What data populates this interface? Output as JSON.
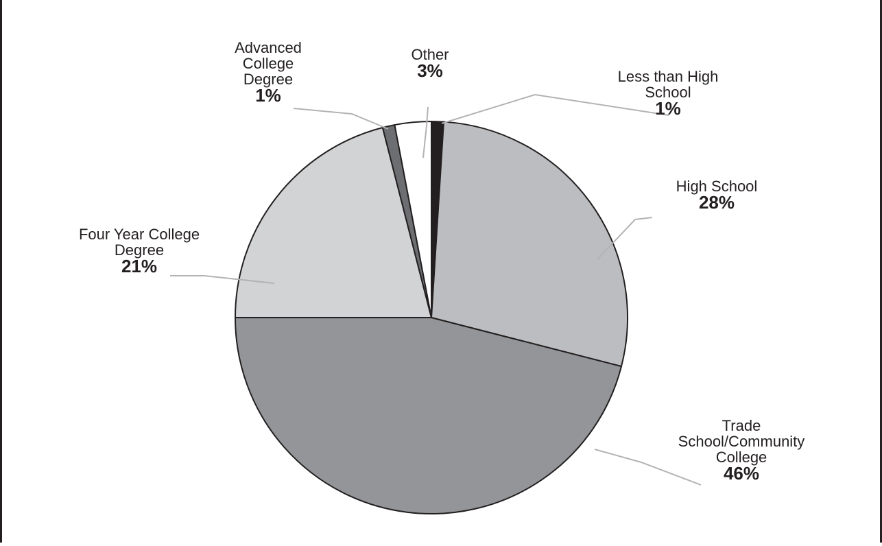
{
  "chart_data": {
    "type": "pie",
    "title": "",
    "start_angle_deg": 0,
    "direction": "clockwise",
    "slices": [
      {
        "name": "Less than High School",
        "label_lines": [
          "Less than High",
          "School"
        ],
        "value": 1,
        "value_label": "1%",
        "color": "#231f20"
      },
      {
        "name": "High School",
        "label_lines": [
          "High School"
        ],
        "value": 28,
        "value_label": "28%",
        "color": "#bcbdc0"
      },
      {
        "name": "Trade School/Community College",
        "label_lines": [
          "Trade",
          "School/Community",
          "College"
        ],
        "value": 46,
        "value_label": "46%",
        "color": "#939598"
      },
      {
        "name": "Four Year College Degree",
        "label_lines": [
          "Four Year College",
          "Degree"
        ],
        "value": 21,
        "value_label": "21%",
        "color": "#d1d3d4"
      },
      {
        "name": "Advanced College Degree",
        "label_lines": [
          "Advanced",
          "College",
          "Degree"
        ],
        "value": 1,
        "value_label": "1%",
        "color": "#6d6e71"
      },
      {
        "name": "Other",
        "label_lines": [
          "Other"
        ],
        "value": 3,
        "value_label": "3%",
        "color": "#ffffff"
      }
    ],
    "leader_line_color": "#b3b3b3",
    "outline_color": "#231f20"
  }
}
